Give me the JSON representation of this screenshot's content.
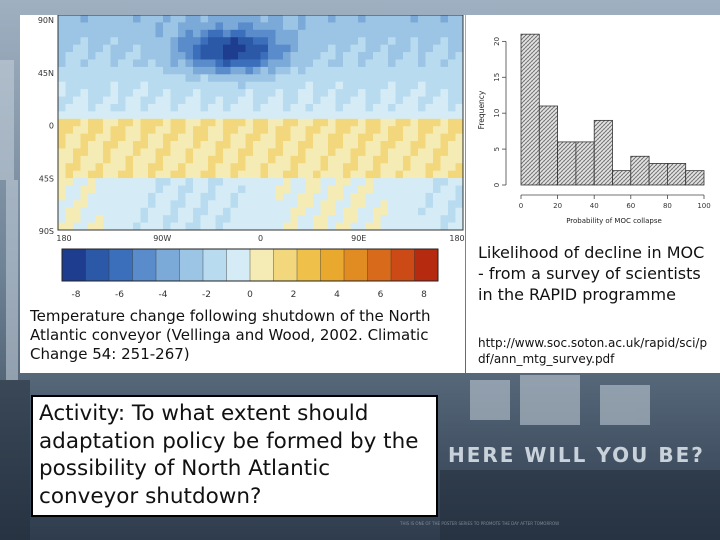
{
  "map": {
    "lat_labels": [
      "90N",
      "45N",
      "0",
      "45S",
      "90S"
    ],
    "lon_labels": [
      "180",
      "90W",
      "0",
      "90E",
      "180"
    ],
    "colorbar_labels": [
      "-8",
      "-6",
      "-4",
      "-2",
      "0",
      "2",
      "4",
      "6",
      "8"
    ],
    "colorbar_colors": [
      "#1e3d8f",
      "#2c58a8",
      "#3b6fbb",
      "#5a8ccb",
      "#7ba9d8",
      "#9cc4e4",
      "#b9dbf0",
      "#d5ecf6",
      "#f4ecb4",
      "#f2d77c",
      "#efc14a",
      "#e9a82e",
      "#e18b23",
      "#d86a1c",
      "#cb4a16",
      "#b62a10"
    ],
    "caption": "Temperature change following shutdown of the North Atlantic conveyor (Vellinga and Wood, 2002. Climatic Change 54: 251-267)"
  },
  "histogram": {
    "ylabel": "Frequency",
    "xlabel": "Probability of MOC collapse",
    "x_ticks": [
      "0",
      "20",
      "40",
      "60",
      "80",
      "100"
    ],
    "y_ticks": [
      "0",
      "5",
      "10",
      "15",
      "20"
    ],
    "caption": "Likelihood of decline in MOC - from a survey of scientists in the RAPID programme",
    "url": "http://www.soc.soton.ac.uk/rapid/sci/pdf/ann_mtg_survey.pdf"
  },
  "chart_data": {
    "type": "bar",
    "bin_edges": [
      0,
      10,
      20,
      30,
      40,
      50,
      60,
      70,
      80,
      90,
      100
    ],
    "values": [
      21,
      11,
      6,
      6,
      9,
      2,
      4,
      3,
      3,
      2
    ],
    "xlabel": "Probability of MOC collapse",
    "ylabel": "Frequency",
    "ylim": [
      0,
      22
    ],
    "xlim": [
      0,
      100
    ]
  },
  "activity": {
    "text": "Activity: To what extent should adaptation policy be formed by the possibility of North Atlantic conveyor shutdown?"
  },
  "background": {
    "tagline": "HERE WILL YOU BE?",
    "footer_note": "THIS IS ONE OF THE POSTER SERIES TO PROMOTE THE DAY AFTER TOMORROW"
  }
}
